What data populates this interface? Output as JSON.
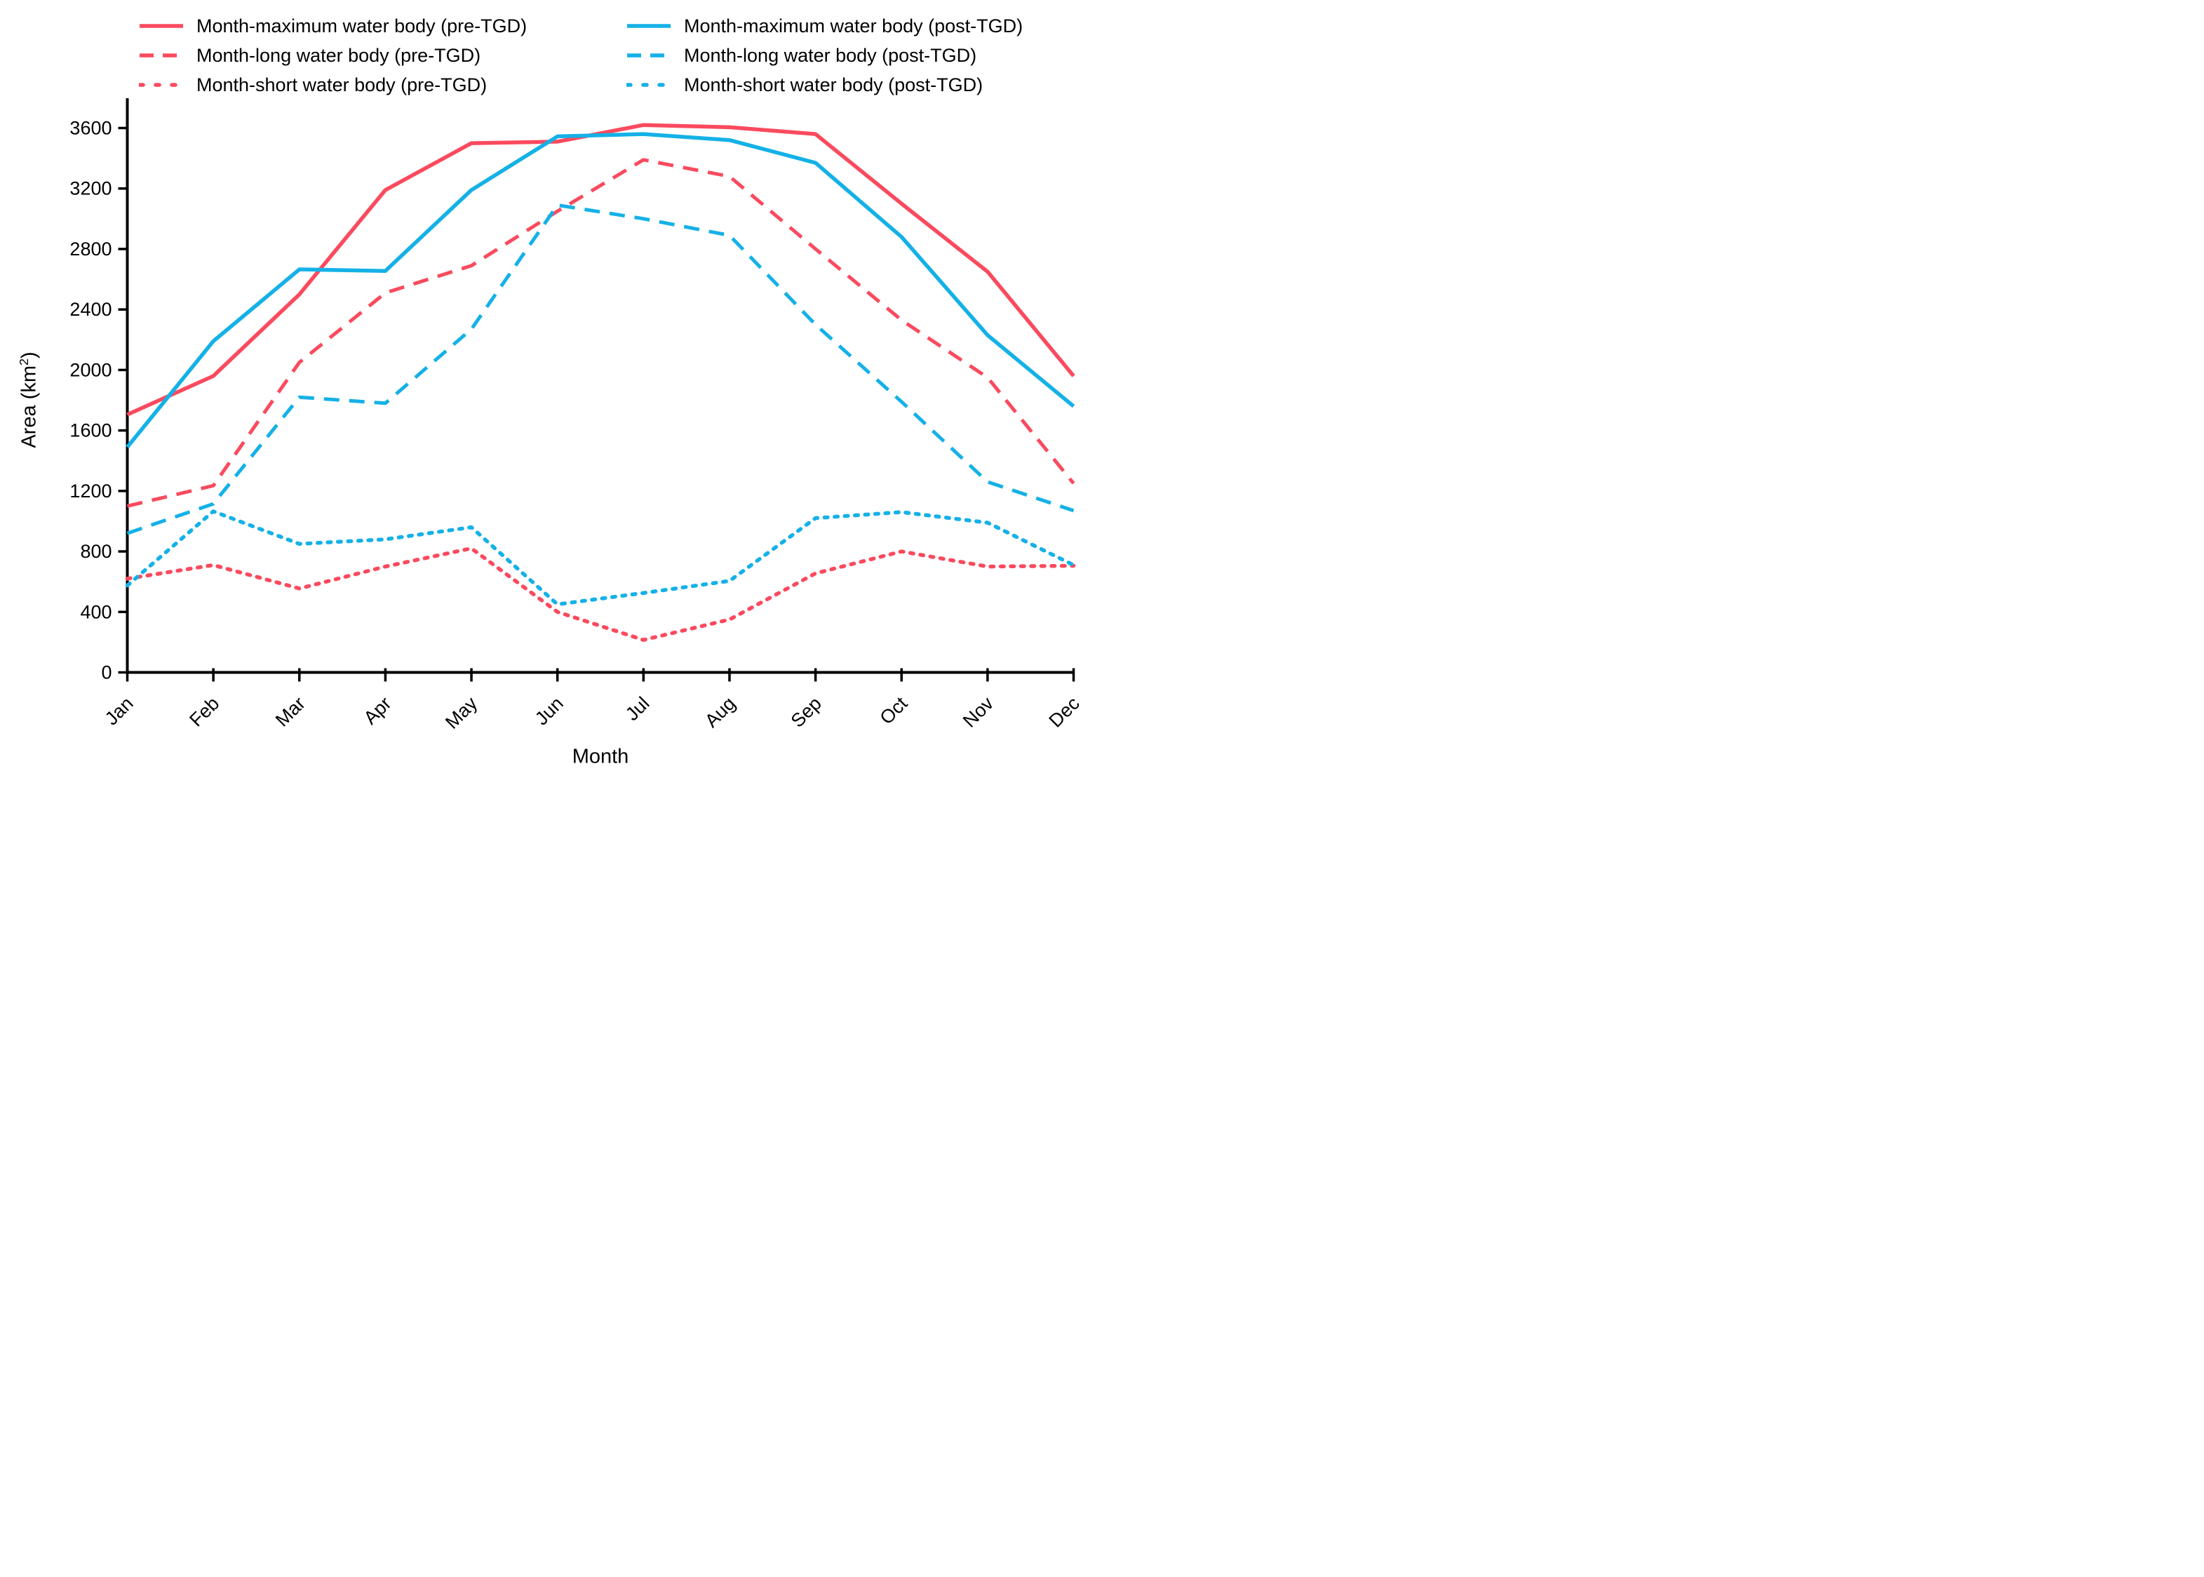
{
  "colors": {
    "pre": "#FA4A5E",
    "post": "#14B1E7",
    "axis": "#000000",
    "text": "#000000"
  },
  "legend": {
    "columns": [
      {
        "items": [
          {
            "label": "Month-maximum water body (pre-TGD)",
            "series": "pre_max"
          },
          {
            "label": "Month-long water body (pre-TGD)",
            "series": "pre_long"
          },
          {
            "label": "Month-short water body (pre-TGD)",
            "series": "pre_short"
          }
        ]
      },
      {
        "items": [
          {
            "label": "Month-maximum water body (post-TGD)",
            "series": "post_max"
          },
          {
            "label": "Month-long water body (post-TGD)",
            "series": "post_long"
          },
          {
            "label": "Month-short water body (post-TGD)",
            "series": "post_short"
          }
        ]
      }
    ]
  },
  "axes": {
    "y_label_parts": [
      "Area (km",
      "2",
      ")"
    ],
    "x_label": "Month",
    "y_ticks": [
      0,
      400,
      800,
      1200,
      1600,
      2000,
      2400,
      2800,
      3200,
      3600
    ]
  },
  "chart_data": {
    "type": "line",
    "title": "",
    "xlabel": "Month",
    "ylabel": "Area (km2)",
    "ylim": [
      0,
      3797
    ],
    "grid": false,
    "legend_position": "top",
    "categories": [
      "Jan",
      "Feb",
      "Mar",
      "Apr",
      "May",
      "Jun",
      "Jul",
      "Aug",
      "Sep",
      "Oct",
      "Nov",
      "Dec"
    ],
    "series": [
      {
        "name": "Month-maximum water body (pre-TGD)",
        "key": "pre_max",
        "color": "pre",
        "style": "solid",
        "values": [
          1705,
          1960,
          2500,
          3190,
          3500,
          3510,
          3620,
          3605,
          3560,
          3100,
          2650,
          1960
        ]
      },
      {
        "name": "Month-maximum water body (post-TGD)",
        "key": "post_max",
        "color": "post",
        "style": "solid",
        "values": [
          1490,
          2190,
          2665,
          2655,
          3190,
          3545,
          3560,
          3520,
          3370,
          2880,
          2230,
          1760
        ]
      },
      {
        "name": "Month-long water body (pre-TGD)",
        "key": "pre_long",
        "color": "pre",
        "style": "dashed",
        "values": [
          1100,
          1235,
          2050,
          2510,
          2690,
          3050,
          3390,
          3280,
          2800,
          2330,
          1950,
          1250
        ]
      },
      {
        "name": "Month-long water body (post-TGD)",
        "key": "post_long",
        "color": "post",
        "style": "dashed",
        "values": [
          920,
          1115,
          1820,
          1780,
          2270,
          3090,
          3000,
          2890,
          2300,
          1790,
          1260,
          1070
        ]
      },
      {
        "name": "Month-short water body (pre-TGD)",
        "key": "pre_short",
        "color": "pre",
        "style": "dotted",
        "values": [
          620,
          710,
          555,
          700,
          820,
          400,
          215,
          350,
          655,
          800,
          700,
          705
        ]
      },
      {
        "name": "Month-short water body (post-TGD)",
        "key": "post_short",
        "color": "post",
        "style": "dotted",
        "values": [
          575,
          1065,
          850,
          880,
          960,
          450,
          525,
          605,
          1020,
          1060,
          990,
          710
        ]
      }
    ]
  }
}
